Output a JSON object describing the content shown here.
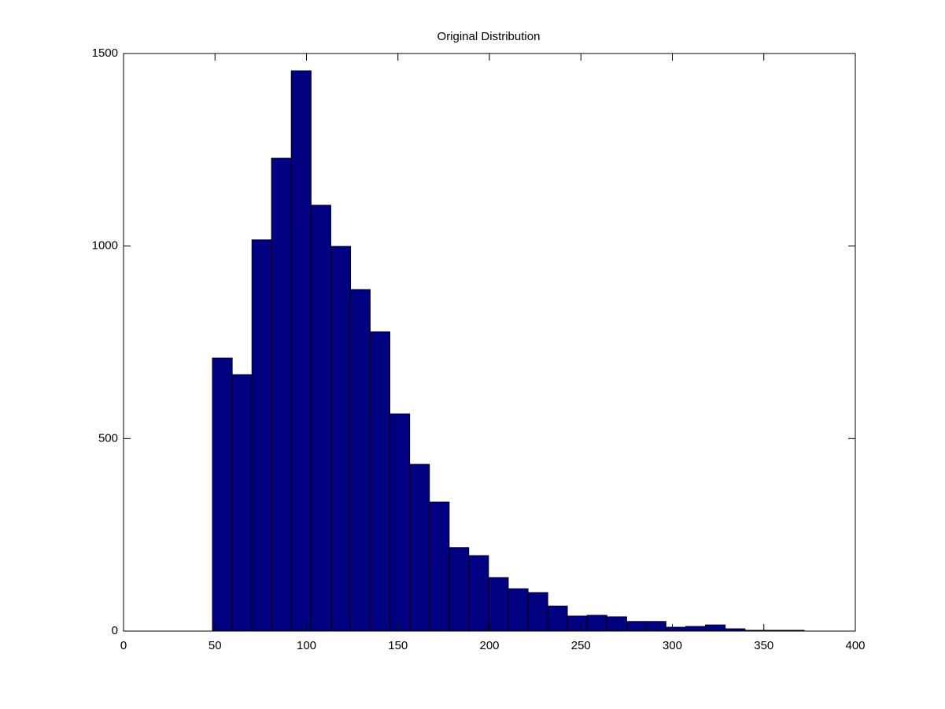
{
  "chart_data": {
    "type": "histogram",
    "title": "Original Distribution",
    "bins": [
      48.6,
      59.4,
      70.2,
      80.9,
      91.7,
      102.5,
      113.3,
      124.1,
      134.8,
      145.6,
      156.4,
      167.2,
      178.0,
      188.7,
      199.5,
      210.3,
      221.1,
      231.9,
      242.6,
      253.4,
      264.2,
      275.0,
      285.8,
      296.5,
      307.3,
      318.1,
      328.9,
      339.7,
      350.4,
      361.2,
      372.0
    ],
    "values": [
      709,
      666,
      1016,
      1228,
      1455,
      1106,
      999,
      887,
      777,
      564,
      433,
      335,
      217,
      196,
      139,
      110,
      100,
      65,
      39,
      41,
      37,
      25,
      25,
      10,
      12,
      16,
      6,
      2,
      2,
      2
    ],
    "color": "#000080",
    "xlim": [
      0,
      400
    ],
    "xticks": [
      0,
      50,
      100,
      150,
      200,
      250,
      300,
      350,
      400
    ],
    "ylim": [
      0,
      1500
    ],
    "yticks": [
      0,
      500,
      1000,
      1500
    ],
    "grid": false
  }
}
